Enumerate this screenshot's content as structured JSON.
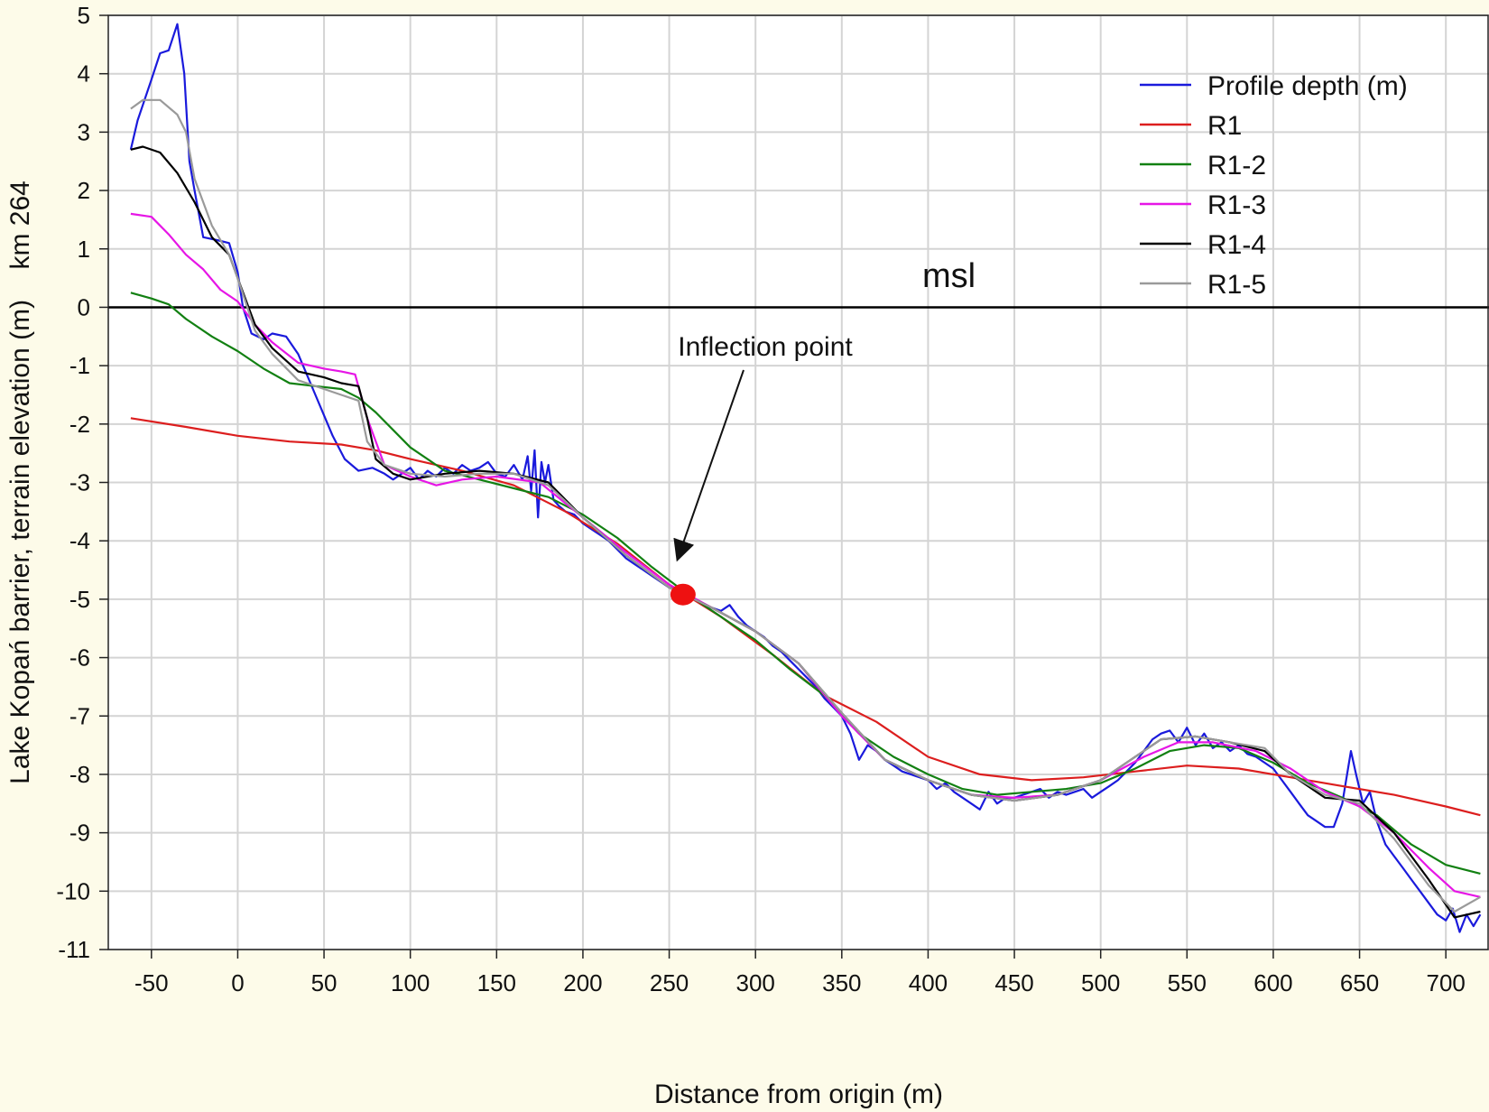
{
  "chart_data": {
    "type": "line",
    "xlabel": "Distance from origin (m)",
    "ylabel": "Lake Kopań barrier, terrain elevation (m)    km 264",
    "xlim": [
      -75,
      725
    ],
    "ylim": [
      -11,
      5
    ],
    "xticks": [
      -50,
      0,
      50,
      100,
      150,
      200,
      250,
      300,
      350,
      400,
      450,
      500,
      550,
      600,
      650,
      700
    ],
    "yticks": [
      5,
      4,
      3,
      2,
      1,
      0,
      -1,
      -2,
      -3,
      -4,
      -5,
      -6,
      -7,
      -8,
      -9,
      -10,
      -11
    ],
    "grid": true,
    "legend_position": "top-right",
    "series": [
      {
        "name": "Profile depth (m)",
        "color": "#1a1adc",
        "x": [
          -62,
          -58,
          -50,
          -45,
          -40,
          -35,
          -31,
          -28,
          -25,
          -20,
          -12,
          -5,
          0,
          3,
          8,
          15,
          20,
          28,
          35,
          45,
          55,
          62,
          70,
          78,
          85,
          90,
          95,
          100,
          105,
          110,
          115,
          120,
          125,
          130,
          135,
          140,
          145,
          150,
          155,
          160,
          165,
          168,
          170,
          172,
          174,
          176,
          178,
          180,
          183,
          186,
          190,
          195,
          200,
          205,
          210,
          215,
          220,
          225,
          230,
          235,
          240,
          245,
          250,
          255,
          260,
          265,
          270,
          275,
          280,
          285,
          290,
          295,
          300,
          305,
          310,
          315,
          320,
          325,
          330,
          335,
          340,
          345,
          350,
          355,
          360,
          365,
          370,
          375,
          380,
          385,
          390,
          395,
          400,
          405,
          410,
          415,
          420,
          425,
          430,
          435,
          440,
          445,
          450,
          455,
          460,
          465,
          470,
          475,
          480,
          485,
          490,
          495,
          500,
          505,
          510,
          515,
          520,
          525,
          530,
          535,
          540,
          545,
          550,
          555,
          560,
          565,
          570,
          575,
          580,
          585,
          590,
          595,
          600,
          605,
          610,
          615,
          620,
          625,
          630,
          635,
          640,
          645,
          648,
          652,
          656,
          660,
          665,
          670,
          675,
          680,
          685,
          690,
          695,
          700,
          704,
          708,
          712,
          716,
          720
        ],
        "y": [
          2.7,
          3.2,
          3.9,
          4.35,
          4.4,
          4.85,
          4.0,
          2.5,
          2.0,
          1.2,
          1.15,
          1.1,
          0.6,
          0.0,
          -0.45,
          -0.55,
          -0.45,
          -0.5,
          -0.8,
          -1.5,
          -2.2,
          -2.6,
          -2.8,
          -2.75,
          -2.85,
          -2.95,
          -2.85,
          -2.75,
          -2.95,
          -2.8,
          -2.9,
          -2.75,
          -2.85,
          -2.7,
          -2.8,
          -2.75,
          -2.65,
          -2.85,
          -2.9,
          -2.7,
          -2.95,
          -2.55,
          -3.15,
          -2.45,
          -3.6,
          -2.65,
          -3.0,
          -2.7,
          -3.3,
          -3.4,
          -3.5,
          -3.55,
          -3.7,
          -3.8,
          -3.9,
          -4.0,
          -4.15,
          -4.3,
          -4.4,
          -4.5,
          -4.6,
          -4.7,
          -4.8,
          -4.85,
          -4.95,
          -5.0,
          -5.1,
          -5.15,
          -5.2,
          -5.1,
          -5.3,
          -5.45,
          -5.55,
          -5.65,
          -5.8,
          -5.9,
          -6.05,
          -6.2,
          -6.35,
          -6.5,
          -6.7,
          -6.85,
          -7.0,
          -7.3,
          -7.75,
          -7.5,
          -7.6,
          -7.75,
          -7.85,
          -7.95,
          -8.0,
          -8.05,
          -8.1,
          -8.25,
          -8.15,
          -8.3,
          -8.4,
          -8.5,
          -8.6,
          -8.3,
          -8.5,
          -8.4,
          -8.4,
          -8.35,
          -8.3,
          -8.25,
          -8.4,
          -8.3,
          -8.35,
          -8.3,
          -8.25,
          -8.4,
          -8.3,
          -8.2,
          -8.1,
          -7.95,
          -7.8,
          -7.6,
          -7.4,
          -7.3,
          -7.25,
          -7.45,
          -7.2,
          -7.5,
          -7.3,
          -7.55,
          -7.45,
          -7.6,
          -7.5,
          -7.65,
          -7.7,
          -7.8,
          -7.9,
          -8.1,
          -8.3,
          -8.5,
          -8.7,
          -8.8,
          -8.9,
          -8.9,
          -8.5,
          -7.6,
          -8.0,
          -8.5,
          -8.3,
          -8.8,
          -9.2,
          -9.4,
          -9.6,
          -9.8,
          -10.0,
          -10.2,
          -10.4,
          -10.5,
          -10.3,
          -10.7,
          -10.4,
          -10.6,
          -10.4
        ]
      },
      {
        "name": "R1",
        "color": "#dc1e1e",
        "x": [
          -62,
          -30,
          0,
          30,
          60,
          80,
          100,
          130,
          160,
          190,
          220,
          250,
          280,
          310,
          340,
          370,
          400,
          430,
          460,
          490,
          520,
          550,
          580,
          610,
          640,
          670,
          700,
          720
        ],
        "y": [
          -1.9,
          -2.05,
          -2.2,
          -2.3,
          -2.35,
          -2.45,
          -2.6,
          -2.8,
          -3.05,
          -3.5,
          -4.05,
          -4.75,
          -5.3,
          -5.95,
          -6.65,
          -7.1,
          -7.7,
          -8.0,
          -8.1,
          -8.05,
          -7.95,
          -7.85,
          -7.9,
          -8.05,
          -8.2,
          -8.35,
          -8.55,
          -8.7
        ]
      },
      {
        "name": "R1-2",
        "color": "#128012",
        "x": [
          -62,
          -50,
          -40,
          -30,
          -15,
          0,
          15,
          30,
          45,
          60,
          70,
          80,
          90,
          100,
          120,
          140,
          160,
          180,
          200,
          220,
          240,
          260,
          280,
          300,
          320,
          340,
          360,
          380,
          400,
          420,
          440,
          460,
          480,
          500,
          520,
          540,
          560,
          580,
          600,
          620,
          640,
          660,
          680,
          700,
          720
        ],
        "y": [
          0.25,
          0.15,
          0.05,
          -0.2,
          -0.5,
          -0.75,
          -1.05,
          -1.3,
          -1.35,
          -1.4,
          -1.55,
          -1.8,
          -2.1,
          -2.4,
          -2.8,
          -2.95,
          -3.1,
          -3.25,
          -3.55,
          -3.95,
          -4.45,
          -4.9,
          -5.3,
          -5.7,
          -6.2,
          -6.65,
          -7.3,
          -7.7,
          -8.0,
          -8.25,
          -8.35,
          -8.3,
          -8.25,
          -8.15,
          -7.9,
          -7.6,
          -7.5,
          -7.55,
          -7.8,
          -8.15,
          -8.4,
          -8.7,
          -9.2,
          -9.55,
          -9.7
        ]
      },
      {
        "name": "R1-3",
        "color": "#e616e6",
        "x": [
          -62,
          -50,
          -40,
          -30,
          -20,
          -10,
          0,
          10,
          20,
          35,
          50,
          60,
          68,
          75,
          85,
          100,
          115,
          130,
          150,
          175,
          200,
          225,
          250,
          275,
          300,
          325,
          350,
          375,
          400,
          425,
          450,
          475,
          500,
          525,
          545,
          565,
          590,
          610,
          630,
          650,
          670,
          690,
          705,
          720
        ],
        "y": [
          1.6,
          1.55,
          1.25,
          0.9,
          0.65,
          0.3,
          0.1,
          -0.3,
          -0.6,
          -0.95,
          -1.05,
          -1.1,
          -1.15,
          -1.9,
          -2.7,
          -2.9,
          -3.05,
          -2.95,
          -2.9,
          -3.0,
          -3.6,
          -4.2,
          -4.75,
          -5.15,
          -5.55,
          -6.1,
          -7.0,
          -7.75,
          -8.1,
          -8.35,
          -8.4,
          -8.35,
          -8.1,
          -7.7,
          -7.45,
          -7.45,
          -7.6,
          -7.9,
          -8.3,
          -8.55,
          -9.0,
          -9.6,
          -10.0,
          -10.1
        ]
      },
      {
        "name": "R1-4",
        "color": "#000000",
        "x": [
          -62,
          -55,
          -45,
          -35,
          -25,
          -15,
          -5,
          0,
          10,
          20,
          35,
          50,
          60,
          70,
          75,
          80,
          90,
          100,
          120,
          140,
          160,
          180,
          200,
          225,
          250,
          275,
          300,
          325,
          350,
          375,
          400,
          425,
          450,
          475,
          500,
          520,
          535,
          555,
          575,
          595,
          610,
          630,
          650,
          670,
          690,
          705,
          720
        ],
        "y": [
          2.7,
          2.75,
          2.65,
          2.3,
          1.8,
          1.2,
          0.9,
          0.5,
          -0.3,
          -0.7,
          -1.1,
          -1.2,
          -1.3,
          -1.35,
          -1.9,
          -2.6,
          -2.85,
          -2.95,
          -2.85,
          -2.8,
          -2.85,
          -3.0,
          -3.6,
          -4.25,
          -4.8,
          -5.15,
          -5.55,
          -6.1,
          -6.95,
          -7.75,
          -8.1,
          -8.35,
          -8.45,
          -8.35,
          -8.1,
          -7.7,
          -7.4,
          -7.35,
          -7.45,
          -7.6,
          -8.0,
          -8.4,
          -8.45,
          -9.0,
          -9.8,
          -10.45,
          -10.35
        ]
      },
      {
        "name": "R1-5",
        "color": "#9a9a9a",
        "x": [
          -62,
          -55,
          -45,
          -35,
          -30,
          -25,
          -15,
          -5,
          0,
          10,
          20,
          35,
          50,
          60,
          70,
          75,
          85,
          100,
          120,
          140,
          160,
          180,
          200,
          225,
          250,
          275,
          300,
          325,
          350,
          375,
          400,
          425,
          450,
          475,
          500,
          520,
          535,
          555,
          575,
          595,
          610,
          630,
          650,
          670,
          690,
          705,
          720
        ],
        "y": [
          3.4,
          3.55,
          3.55,
          3.3,
          3.0,
          2.2,
          1.4,
          0.9,
          0.5,
          -0.4,
          -0.8,
          -1.25,
          -1.4,
          -1.5,
          -1.6,
          -2.3,
          -2.7,
          -2.85,
          -2.9,
          -2.85,
          -2.85,
          -3.05,
          -3.6,
          -4.25,
          -4.8,
          -5.15,
          -5.55,
          -6.1,
          -6.95,
          -7.75,
          -8.1,
          -8.35,
          -8.45,
          -8.35,
          -8.1,
          -7.7,
          -7.4,
          -7.35,
          -7.45,
          -7.55,
          -8.0,
          -8.35,
          -8.5,
          -9.1,
          -9.9,
          -10.35,
          -10.1
        ]
      }
    ],
    "reference_line": {
      "y": 0,
      "color": "#000000"
    },
    "annotations": {
      "msl": "msl",
      "inflection_label": "Inflection point",
      "inflection_point": {
        "x": 258,
        "y": -4.92,
        "color": "#ee1111"
      },
      "arrow_target": {
        "x": 255,
        "y": -4.3
      }
    }
  }
}
